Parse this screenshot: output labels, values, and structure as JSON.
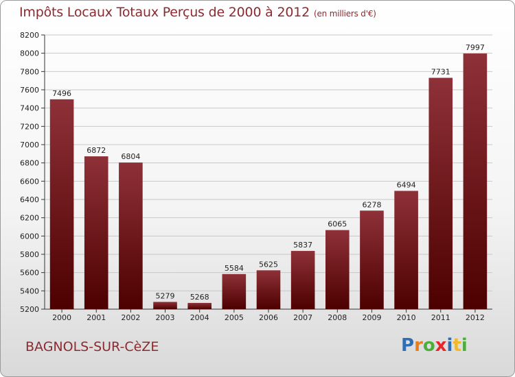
{
  "header": {
    "title": "Impôts Locaux Totaux Perçus de 2000 à 2012",
    "unit": "(en milliers d'€)"
  },
  "footer": {
    "town": "BAGNOLS-SUR-CèZE",
    "logo": {
      "letters": [
        "P",
        "r",
        "o",
        "x",
        "i",
        "t",
        "i"
      ],
      "colors": [
        "#2f6db5",
        "#e87d1e",
        "#4caf3a",
        "#e8262a",
        "#2f6db5",
        "#f1b82d",
        "#4caf3a"
      ]
    }
  },
  "colors": {
    "bar_top": "#8e3138",
    "bar_bottom": "#4d0000",
    "title": "#8b2a2f",
    "grid": "#c8c8c8"
  },
  "chart_data": {
    "type": "bar",
    "title": "Impôts Locaux Totaux Perçus de 2000 à 2012",
    "categories": [
      "2000",
      "2001",
      "2002",
      "2003",
      "2004",
      "2005",
      "2006",
      "2007",
      "2008",
      "2009",
      "2010",
      "2011",
      "2012"
    ],
    "values": [
      7496,
      6872,
      6804,
      5279,
      5268,
      5584,
      5625,
      5837,
      6065,
      6278,
      6494,
      7731,
      7997
    ],
    "ylim": [
      5200,
      8200
    ],
    "yticks": [
      5200,
      5400,
      5600,
      5800,
      6000,
      6200,
      6400,
      6600,
      6800,
      7000,
      7200,
      7400,
      7600,
      7800,
      8000,
      8200
    ],
    "grid": true,
    "xlabel": "",
    "ylabel": ""
  }
}
